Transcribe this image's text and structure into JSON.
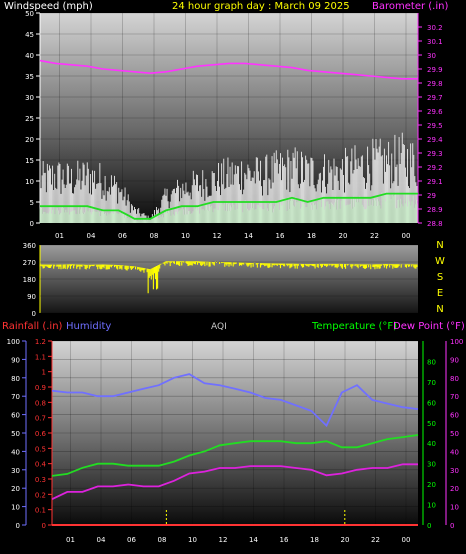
{
  "title": "24 hour graph day : March 09 2025",
  "colors": {
    "wind_label": "#ffffff",
    "title": "#ffff00",
    "barometer": "#ff33ff",
    "direction": "#ffff00",
    "rain": "#ff3333",
    "humidity": "#6f6fff",
    "aqi": "#c8c8c8",
    "temperature": "#00ff00",
    "dewpoint": "#ff33ff",
    "hum_line": "#7070ff",
    "temp_line": "#22dd22",
    "dew_line": "#dd22dd",
    "gust": "#ffffff",
    "wind_avg": "#22dd22",
    "wind_fill": "#c8f0c8"
  },
  "chart_data": [
    {
      "type": "line",
      "title": "",
      "left_label": "Windspeed (mph)",
      "right_label": "Barometer (.in)",
      "x_ticks": [
        "01",
        "04",
        "06",
        "08",
        "10",
        "12",
        "14",
        "16",
        "18",
        "20",
        "22",
        "00"
      ],
      "ylim_left": [
        0,
        50
      ],
      "ytick_left": [
        "0",
        "5",
        "10",
        "15",
        "20",
        "25",
        "30",
        "35",
        "40",
        "45",
        "50"
      ],
      "ylim_right": [
        28.8,
        30.3
      ],
      "ytick_right": [
        "28.8",
        "28.9",
        "29",
        "29.1",
        "29.2",
        "29.3",
        "29.4",
        "29.5",
        "29.6",
        "29.7",
        "29.8",
        "29.9",
        "30",
        "30.1",
        "30.2"
      ],
      "hours": [
        0,
        1,
        2,
        3,
        4,
        5,
        6,
        7,
        8,
        9,
        10,
        11,
        12,
        13,
        14,
        15,
        16,
        17,
        18,
        19,
        20,
        21,
        22,
        23,
        24
      ],
      "series": [
        {
          "name": "Barometer",
          "axis": "right",
          "values": [
            29.96,
            29.94,
            29.93,
            29.92,
            29.9,
            29.89,
            29.88,
            29.87,
            29.88,
            29.9,
            29.92,
            29.93,
            29.94,
            29.94,
            29.93,
            29.92,
            29.91,
            29.89,
            29.88,
            29.87,
            29.86,
            29.85,
            29.84,
            29.83,
            29.83
          ]
        },
        {
          "name": "Wind Gust",
          "axis": "left",
          "values": [
            10,
            11,
            10,
            11,
            10,
            8,
            3,
            1,
            6,
            8,
            9,
            10,
            11,
            12,
            11,
            12,
            13,
            12,
            12,
            12,
            13,
            14,
            14,
            15,
            14
          ]
        },
        {
          "name": "Wind Speed",
          "axis": "left",
          "values": [
            4,
            4,
            4,
            4,
            3,
            3,
            1,
            1,
            3,
            4,
            4,
            5,
            5,
            5,
            5,
            5,
            6,
            5,
            6,
            6,
            6,
            6,
            7,
            7,
            7
          ]
        }
      ]
    },
    {
      "type": "line",
      "title": "",
      "right_labels": [
        "N",
        "W",
        "S",
        "E",
        "N"
      ],
      "ylim": [
        0,
        360
      ],
      "ytick_left": [
        "0",
        "90",
        "180",
        "270",
        "360"
      ],
      "hours": [
        0,
        1,
        2,
        3,
        4,
        5,
        6,
        7,
        8,
        9,
        10,
        11,
        12,
        13,
        14,
        15,
        16,
        17,
        18,
        19,
        20,
        21,
        22,
        23,
        24
      ],
      "series": [
        {
          "name": "Wind Direction",
          "values": [
            245,
            244,
            246,
            243,
            245,
            242,
            235,
            220,
            262,
            262,
            262,
            258,
            257,
            254,
            252,
            250,
            249,
            247,
            248,
            248,
            246,
            245,
            247,
            246,
            245
          ]
        }
      ]
    },
    {
      "type": "line",
      "title": "",
      "labels": {
        "rain": "Rainfall (.in)",
        "humidity": "Humidity",
        "aqi": "AQI",
        "temperature": "Temperature (°F)",
        "dewpoint": "Dew Point (°F)"
      },
      "x_ticks": [
        "01",
        "04",
        "06",
        "08",
        "10",
        "12",
        "14",
        "16",
        "18",
        "20",
        "22",
        "00"
      ],
      "ylim_rain": [
        0,
        1.2
      ],
      "ytick_rain": [
        "0",
        "0.1",
        "0.2",
        "0.3",
        "0.4",
        "0.5",
        "0.6",
        "0.7",
        "0.8",
        "0.9",
        "1",
        "1.1",
        "1.2"
      ],
      "ylim_humidity": [
        0,
        100
      ],
      "ytick_humidity": [
        "0",
        "10",
        "20",
        "30",
        "40",
        "50",
        "60",
        "70",
        "80",
        "90",
        "100"
      ],
      "ylim_temp": [
        0,
        90
      ],
      "ytick_temp": [
        "0",
        "10",
        "20",
        "30",
        "40",
        "50",
        "60",
        "70",
        "80"
      ],
      "ylim_dew": [
        0,
        100
      ],
      "ytick_dew": [
        "0",
        "10",
        "20",
        "30",
        "40",
        "50",
        "60",
        "70",
        "80",
        "90",
        "100"
      ],
      "hours": [
        0,
        1,
        2,
        3,
        4,
        5,
        6,
        7,
        8,
        9,
        10,
        11,
        12,
        13,
        14,
        15,
        16,
        17,
        18,
        19,
        20,
        21,
        22,
        23,
        24
      ],
      "series": [
        {
          "name": "Humidity",
          "axis": "humidity",
          "values": [
            73,
            72,
            72,
            70,
            70,
            72,
            74,
            76,
            80,
            82,
            77,
            76,
            74,
            72,
            69,
            68,
            65,
            62,
            54,
            72,
            76,
            68,
            66,
            64,
            63
          ]
        },
        {
          "name": "Temperature",
          "axis": "temp",
          "values": [
            24,
            25,
            28,
            30,
            30,
            29,
            29,
            29,
            31,
            34,
            36,
            39,
            40,
            41,
            41,
            41,
            40,
            40,
            41,
            38,
            38,
            40,
            42,
            43,
            44
          ]
        },
        {
          "name": "Dew Point",
          "axis": "dew",
          "values": [
            14,
            18,
            18,
            21,
            21,
            22,
            21,
            21,
            24,
            28,
            29,
            31,
            31,
            32,
            32,
            32,
            31,
            30,
            27,
            28,
            30,
            31,
            31,
            33,
            33
          ]
        },
        {
          "name": "Rainfall",
          "axis": "rain",
          "values": [
            0,
            0,
            0,
            0,
            0,
            0,
            0,
            0,
            0,
            0,
            0,
            0,
            0,
            0,
            0,
            0,
            0,
            0,
            0,
            0,
            0,
            0,
            0,
            0,
            0
          ]
        }
      ]
    }
  ]
}
